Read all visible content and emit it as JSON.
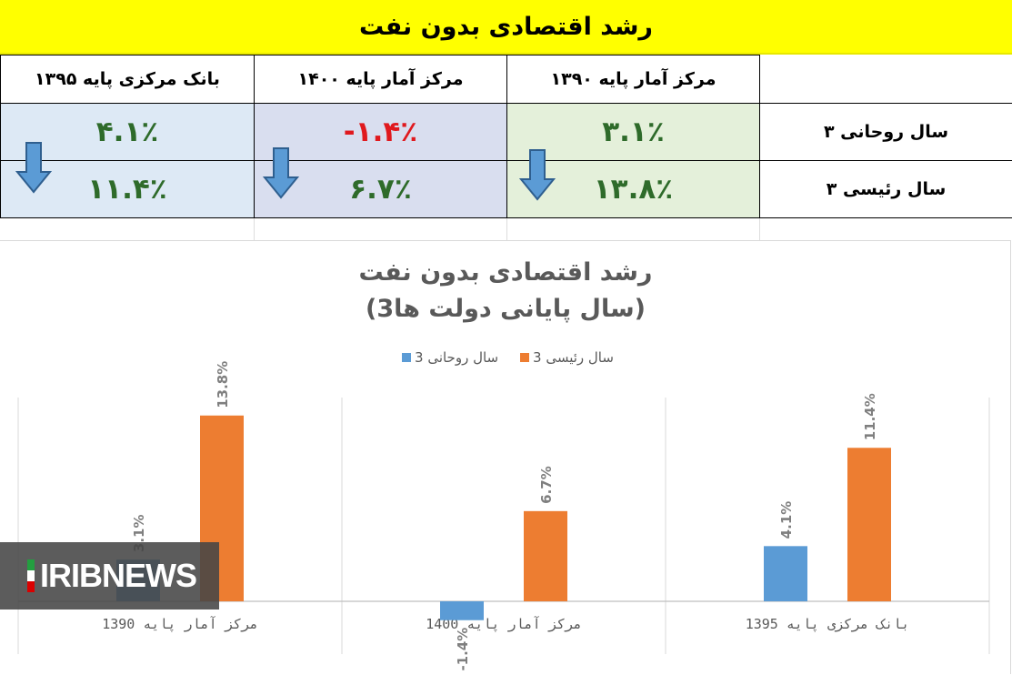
{
  "banner": {
    "title": "رشد اقتصادی بدون نفت"
  },
  "table": {
    "headers": [
      "بانک مرکزی پایه ۱۳۹۵",
      "مرکز آمار پایه ۱۴۰۰",
      "مرکز آمار پایه ۱۳۹۰"
    ],
    "rows": [
      {
        "label": "۳ سال روحانی",
        "values": [
          "۴.۱٪",
          "-۱.۴٪",
          "۳.۱٪"
        ]
      },
      {
        "label": "۳ سال رئیسی",
        "values": [
          "۱۱.۴٪",
          "۶.۷٪",
          "۱۳.۸٪"
        ]
      }
    ],
    "colors": {
      "positive": "#2e6b2a",
      "negative": "#e0191e",
      "arrow": "#5b9bd5"
    }
  },
  "watermark": {
    "text": "IRIBNEWS"
  },
  "chart_data": {
    "type": "bar",
    "title": "رشد اقتصادی بدون نفت",
    "subtitle": "(3سال پایانی دولت ها)",
    "categories": [
      "مرکز آمار پایه 1390",
      "مرکز آمار پایه 1400",
      "بانک مرکزی پایه 1395"
    ],
    "series": [
      {
        "name": "3 سال روحانی",
        "values": [
          3.1,
          -1.4,
          4.1
        ],
        "labels": [
          "3.1%",
          "-1.4%",
          "4.1%"
        ],
        "color": "#5b9bd5"
      },
      {
        "name": "3 سال رئیسی",
        "values": [
          13.8,
          6.7,
          11.4
        ],
        "labels": [
          "13.8%",
          "6.7%",
          "11.4%"
        ],
        "color": "#ed7d31"
      }
    ],
    "legend": "top",
    "ylim": [
      -4,
      17
    ],
    "grid": false
  }
}
